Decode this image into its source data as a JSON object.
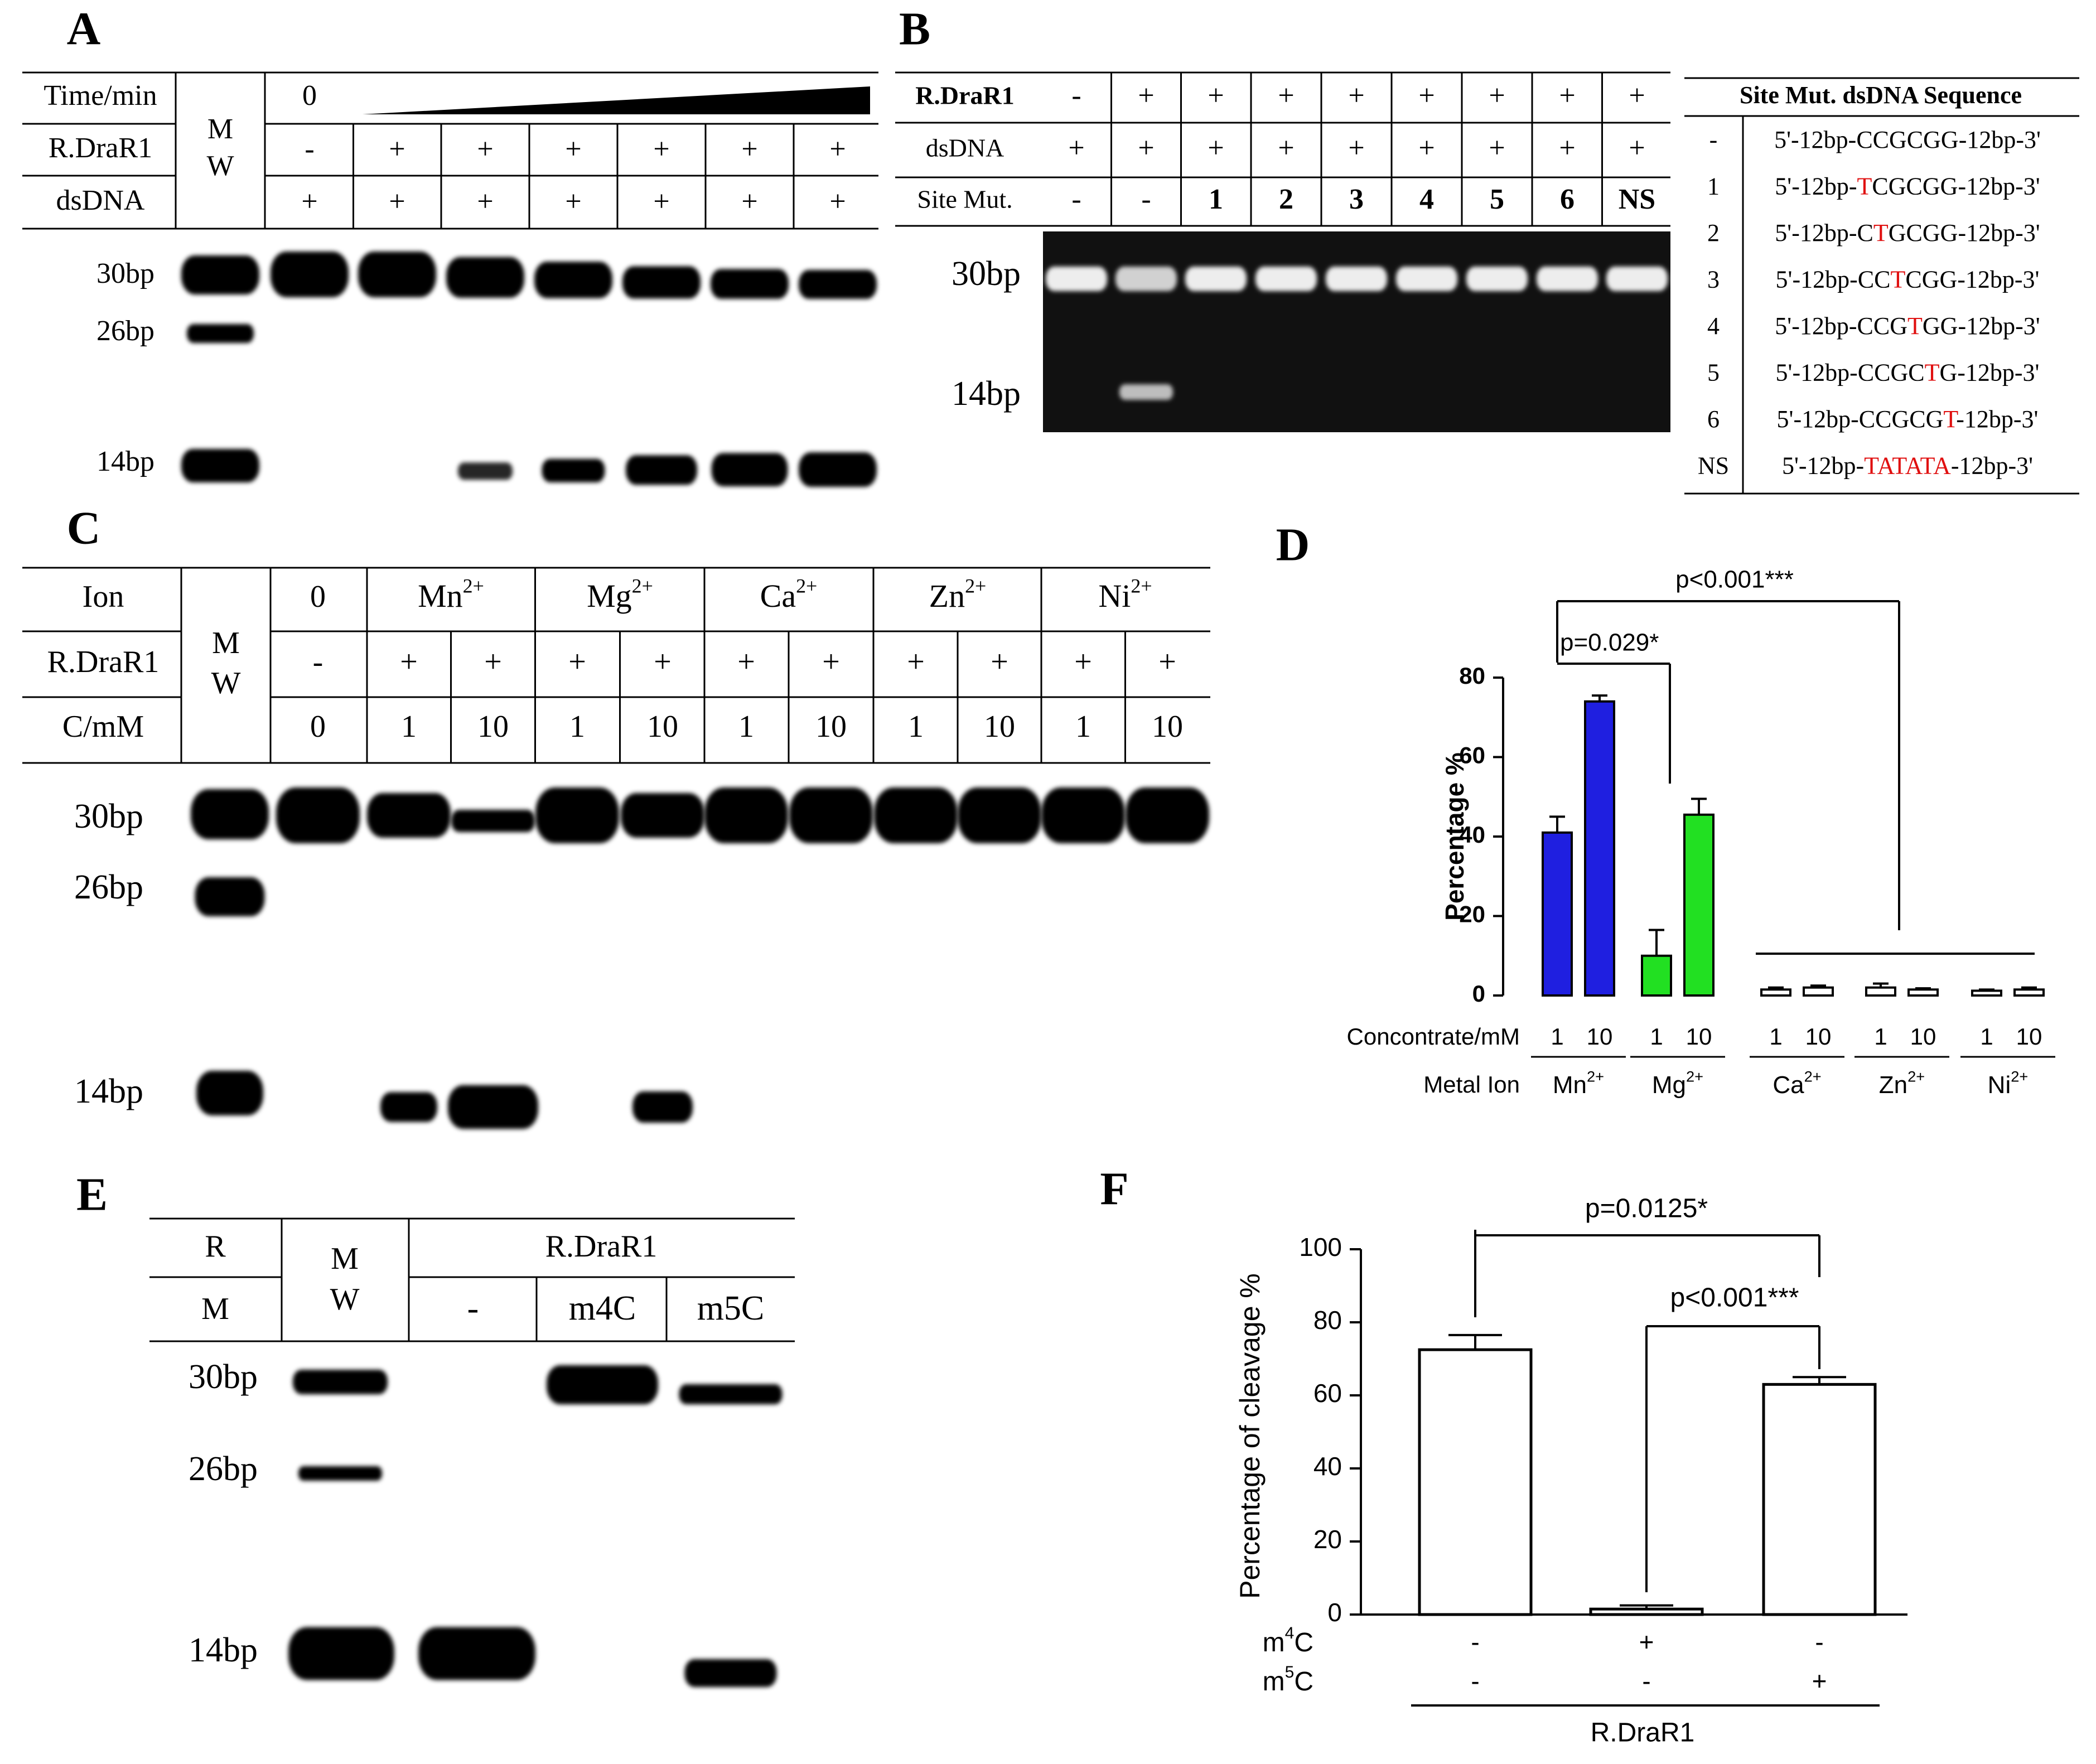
{
  "panels": {
    "A": {
      "letter": "A",
      "header": {
        "time_label": "Time/min",
        "time_zero": "0",
        "mw_line1": "M",
        "mw_line2": "W",
        "enzyme_label": "R.DraR1",
        "dna_label": "dsDNA"
      },
      "enzyme_row": [
        "-",
        "+",
        "+",
        "+",
        "+",
        "+",
        "+"
      ],
      "dna_row": [
        "+",
        "+",
        "+",
        "+",
        "+",
        "+",
        "+"
      ],
      "markers": [
        "30bp",
        "26bp",
        "14bp"
      ],
      "cleavage_level": [
        0,
        0,
        0.3,
        0.55,
        0.8,
        0.95,
        1.0
      ]
    },
    "B": {
      "letter": "B",
      "header": {
        "enzyme_label": "R.DraR1",
        "dna_label": "dsDNA",
        "site_label": "Site Mut."
      },
      "enzyme_row": [
        "-",
        "+",
        "+",
        "+",
        "+",
        "+",
        "+",
        "+",
        "+"
      ],
      "dna_row": [
        "+",
        "+",
        "+",
        "+",
        "+",
        "+",
        "+",
        "+",
        "+"
      ],
      "site_row": [
        "-",
        "-",
        "1",
        "2",
        "3",
        "4",
        "5",
        "6",
        "NS"
      ],
      "markers": [
        "30bp",
        "14bp"
      ],
      "seq_table": {
        "title": "Site Mut. dsDNA Sequence",
        "rows": [
          {
            "site": "-",
            "pre": "5'-12bp-",
            "seq": "CCGCGG",
            "mut": "",
            "post": "-12bp-3'"
          },
          {
            "site": "1",
            "pre": "5'-12bp-",
            "seq": "",
            "mut": "T",
            "seqafter": "CGCGG",
            "post": "-12bp-3'"
          },
          {
            "site": "2",
            "pre": "5'-12bp-C",
            "mut": "T",
            "seqafter": "GCGG",
            "post": "-12bp-3'"
          },
          {
            "site": "3",
            "pre": "5'-12bp-CC",
            "mut": "T",
            "seqafter": "CGG",
            "post": "-12bp-3'"
          },
          {
            "site": "4",
            "pre": "5'-12bp-CCG",
            "mut": "T",
            "seqafter": "GG",
            "post": "-12bp-3'"
          },
          {
            "site": "5",
            "pre": "5'-12bp-CCGC",
            "mut": "T",
            "seqafter": "G",
            "post": "-12bp-3'"
          },
          {
            "site": "6",
            "pre": "5'-12bp-CCGCG",
            "mut": "T",
            "seqafter": "",
            "post": "-12bp-3'"
          },
          {
            "site": "NS",
            "pre": "5'-12bp-",
            "mut": "TATATA",
            "seqafter": "",
            "post": "-12bp-3'"
          }
        ]
      }
    },
    "C": {
      "letter": "C",
      "header": {
        "ion_label": "Ion",
        "mw_line1": "M",
        "mw_line2": "W",
        "enzyme_label": "R.DraR1",
        "conc_label": "C/mM",
        "ion_zero": "0"
      },
      "ions": [
        {
          "base": "Mn",
          "charge": "2+"
        },
        {
          "base": "Mg",
          "charge": "2+"
        },
        {
          "base": "Ca",
          "charge": "2+"
        },
        {
          "base": "Zn",
          "charge": "2+"
        },
        {
          "base": "Ni",
          "charge": "2+"
        }
      ],
      "enzyme_row": [
        "-",
        "+",
        "+",
        "+",
        "+",
        "+",
        "+",
        "+",
        "+",
        "+",
        "+"
      ],
      "conc_row": [
        "0",
        "1",
        "10",
        "1",
        "10",
        "1",
        "10",
        "1",
        "10",
        "1",
        "10"
      ],
      "markers": [
        "30bp",
        "26bp",
        "14bp"
      ]
    },
    "D": {
      "letter": "D",
      "chart_data": {
        "type": "bar",
        "ylabel": "Percentage %",
        "ylim": [
          0,
          80
        ],
        "yticks": [
          0,
          20,
          40,
          60,
          80
        ],
        "xrow1_label": "Concontrate/mM",
        "xrow2_label": "Metal Ion",
        "groups": [
          {
            "ion": "Mn",
            "charge": "2+",
            "concs": [
              "1",
              "10"
            ],
            "values": [
              41,
              74
            ],
            "errors": [
              4,
              1.5
            ],
            "color": "#1f1fe0"
          },
          {
            "ion": "Mg",
            "charge": "2+",
            "concs": [
              "1",
              "10"
            ],
            "values": [
              10,
              45.5
            ],
            "errors": [
              6.5,
              4
            ],
            "color": "#22e022"
          },
          {
            "ion": "Ca",
            "charge": "2+",
            "concs": [
              "1",
              "10"
            ],
            "values": [
              1.5,
              2
            ],
            "errors": [
              0.5,
              0.5
            ],
            "color": "#ffffff"
          },
          {
            "ion": "Zn",
            "charge": "2+",
            "concs": [
              "1",
              "10"
            ],
            "values": [
              2,
              1.5
            ],
            "errors": [
              1,
              0.3
            ],
            "color": "#ffffff"
          },
          {
            "ion": "Ni",
            "charge": "2+",
            "concs": [
              "1",
              "10"
            ],
            "values": [
              1.2,
              1.5
            ],
            "errors": [
              0.3,
              0.5
            ],
            "color": "#ffffff"
          }
        ],
        "annotations": [
          "p=0.029*",
          "p<0.001***"
        ]
      }
    },
    "E": {
      "letter": "E",
      "header": {
        "r_label": "R",
        "m_label": "M",
        "mw_line1": "M",
        "mw_line2": "W",
        "enzyme_label": "R.DraR1"
      },
      "methyl_row": [
        "-",
        "m4C",
        "m5C"
      ],
      "markers": [
        "30bp",
        "26bp",
        "14bp"
      ]
    },
    "F": {
      "letter": "F",
      "chart_data": {
        "type": "bar",
        "ylabel": "Percentage of cleavage %",
        "ylim": [
          0,
          100
        ],
        "yticks": [
          0,
          20,
          40,
          60,
          80,
          100
        ],
        "values": [
          72.5,
          1.5,
          63
        ],
        "errors": [
          4,
          1,
          2
        ],
        "m4c_row": [
          "-",
          "+",
          "-"
        ],
        "m5c_row": [
          "-",
          "-",
          "+"
        ],
        "m4c_label": {
          "base": "m",
          "sup": "4",
          "rest": "C"
        },
        "m5c_label": {
          "base": "m",
          "sup": "5",
          "rest": "C"
        },
        "group_label": "R.DraR1",
        "annotations": [
          "p=0.0125*",
          "p<0.001***"
        ]
      }
    }
  }
}
